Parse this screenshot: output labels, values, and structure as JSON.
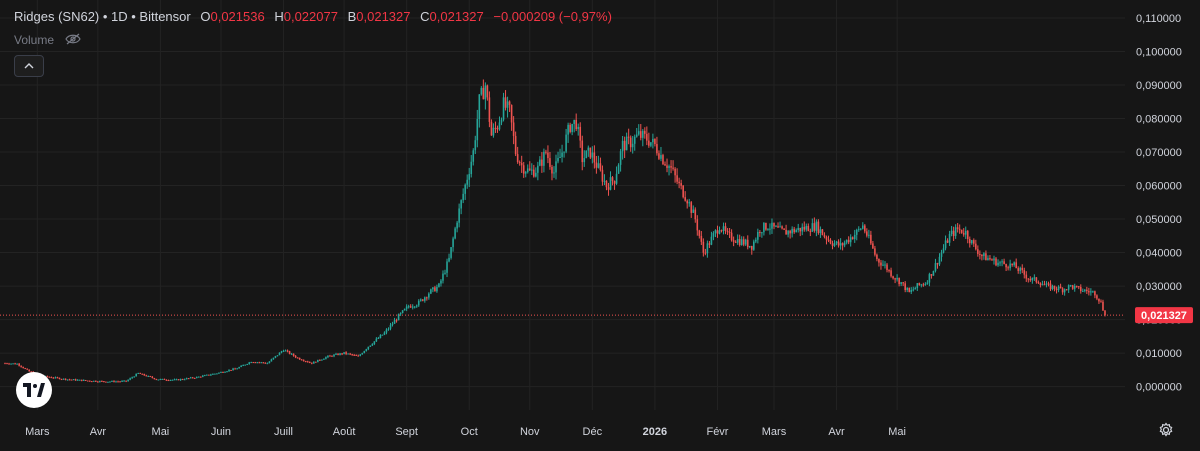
{
  "legend": {
    "symbol": "Ridges (SN62) • 1D • Bittensor",
    "o_label": "O",
    "o_value": "0,021536",
    "h_label": "H",
    "h_value": "0,022077",
    "b_label": "B",
    "b_value": "0,021327",
    "c_label": "C",
    "c_value": "0,021327",
    "change": "−0,000209 (−0,97%)"
  },
  "volume_label": "Volume",
  "colors": {
    "up": "#26a69a",
    "down": "#ef5350",
    "background": "#161616",
    "price_tag": "#f23645",
    "grid": "#232323"
  },
  "chart_data": {
    "type": "candlestick",
    "title": "Ridges (SN62) • 1D • Bittensor",
    "interval": "1D",
    "ylim": [
      -0.004,
      0.11
    ],
    "y_ticks": [
      "0,110000",
      "0,100000",
      "0,090000",
      "0,080000",
      "0,070000",
      "0,060000",
      "0,050000",
      "0,040000",
      "0,030000",
      "0,020000",
      "0,010000",
      "0,000000"
    ],
    "y_tick_values": [
      0.11,
      0.1,
      0.09,
      0.08,
      0.07,
      0.06,
      0.05,
      0.04,
      0.03,
      0.02,
      0.01,
      0.0
    ],
    "x_ticks": [
      "Mars",
      "Avr",
      "Mai",
      "Juin",
      "Juill",
      "Août",
      "Sept",
      "Oct",
      "Nov",
      "Déc",
      "2026",
      "Févr",
      "Mars",
      "Avr",
      "Mai"
    ],
    "bold_ticks": [
      "2026"
    ],
    "last_price": 0.021327,
    "last_price_label": "0,021327",
    "price_path": [
      [
        0,
        0.007
      ],
      [
        6,
        0.0068
      ],
      [
        12,
        0.0045
      ],
      [
        20,
        0.003
      ],
      [
        30,
        0.0022
      ],
      [
        40,
        0.0018
      ],
      [
        50,
        0.0015
      ],
      [
        60,
        0.0016
      ],
      [
        66,
        0.004
      ],
      [
        75,
        0.0022
      ],
      [
        85,
        0.002
      ],
      [
        95,
        0.0028
      ],
      [
        105,
        0.004
      ],
      [
        115,
        0.0055
      ],
      [
        122,
        0.0075
      ],
      [
        130,
        0.007
      ],
      [
        138,
        0.011
      ],
      [
        145,
        0.0085
      ],
      [
        152,
        0.007
      ],
      [
        160,
        0.009
      ],
      [
        168,
        0.01
      ],
      [
        175,
        0.009
      ],
      [
        180,
        0.012
      ],
      [
        188,
        0.016
      ],
      [
        195,
        0.021
      ],
      [
        200,
        0.024
      ],
      [
        205,
        0.025
      ],
      [
        210,
        0.028
      ],
      [
        215,
        0.03
      ],
      [
        220,
        0.038
      ],
      [
        224,
        0.05
      ],
      [
        228,
        0.06
      ],
      [
        232,
        0.07
      ],
      [
        235,
        0.085
      ],
      [
        238,
        0.09
      ],
      [
        241,
        0.075
      ],
      [
        244,
        0.078
      ],
      [
        247,
        0.084
      ],
      [
        250,
        0.082
      ],
      [
        253,
        0.07
      ],
      [
        256,
        0.066
      ],
      [
        260,
        0.064
      ],
      [
        264,
        0.065
      ],
      [
        268,
        0.07
      ],
      [
        272,
        0.064
      ],
      [
        276,
        0.07
      ],
      [
        280,
        0.078
      ],
      [
        283,
        0.079
      ],
      [
        286,
        0.068
      ],
      [
        290,
        0.07
      ],
      [
        294,
        0.065
      ],
      [
        298,
        0.06
      ],
      [
        302,
        0.062
      ],
      [
        306,
        0.072
      ],
      [
        310,
        0.073
      ],
      [
        314,
        0.075
      ],
      [
        318,
        0.074
      ],
      [
        322,
        0.072
      ],
      [
        326,
        0.068
      ],
      [
        330,
        0.065
      ],
      [
        334,
        0.06
      ],
      [
        338,
        0.056
      ],
      [
        342,
        0.05
      ],
      [
        346,
        0.04
      ],
      [
        350,
        0.044
      ],
      [
        354,
        0.048
      ],
      [
        358,
        0.045
      ],
      [
        362,
        0.044
      ],
      [
        366,
        0.043
      ],
      [
        370,
        0.042
      ],
      [
        374,
        0.047
      ],
      [
        378,
        0.048
      ],
      [
        382,
        0.047
      ],
      [
        386,
        0.046
      ],
      [
        390,
        0.0465
      ],
      [
        394,
        0.047
      ],
      [
        398,
        0.0475
      ],
      [
        402,
        0.048
      ],
      [
        406,
        0.045
      ],
      [
        410,
        0.043
      ],
      [
        414,
        0.042
      ],
      [
        418,
        0.044
      ],
      [
        422,
        0.046
      ],
      [
        425,
        0.048
      ],
      [
        428,
        0.044
      ],
      [
        432,
        0.038
      ],
      [
        436,
        0.036
      ],
      [
        440,
        0.033
      ],
      [
        444,
        0.031
      ],
      [
        448,
        0.028
      ],
      [
        452,
        0.03
      ],
      [
        456,
        0.031
      ],
      [
        460,
        0.035
      ],
      [
        464,
        0.04
      ],
      [
        468,
        0.045
      ],
      [
        472,
        0.047
      ],
      [
        476,
        0.046
      ],
      [
        480,
        0.042
      ],
      [
        484,
        0.039
      ],
      [
        488,
        0.038
      ],
      [
        492,
        0.037
      ],
      [
        496,
        0.0365
      ],
      [
        500,
        0.036
      ],
      [
        504,
        0.034
      ],
      [
        508,
        0.032
      ],
      [
        512,
        0.0315
      ],
      [
        516,
        0.03
      ],
      [
        520,
        0.0295
      ],
      [
        524,
        0.029
      ],
      [
        528,
        0.03
      ],
      [
        532,
        0.029
      ],
      [
        536,
        0.0285
      ],
      [
        540,
        0.028
      ],
      [
        543,
        0.025
      ],
      [
        545,
        0.0213
      ]
    ],
    "total_days": 545,
    "x_tick_days": [
      16,
      46,
      77,
      107,
      138,
      168,
      199,
      230,
      260,
      291,
      322,
      353,
      381,
      412,
      442
    ]
  }
}
